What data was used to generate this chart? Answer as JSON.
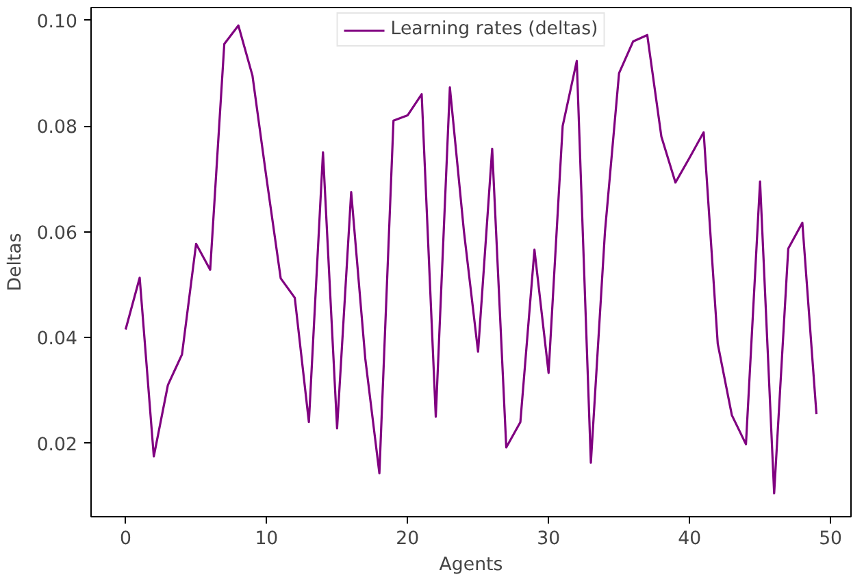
{
  "chart_data": {
    "type": "line",
    "xlabel": "Agents",
    "ylabel": "Deltas",
    "x": [
      0,
      1,
      2,
      3,
      4,
      5,
      6,
      7,
      8,
      9,
      10,
      11,
      12,
      13,
      14,
      15,
      16,
      17,
      18,
      19,
      20,
      21,
      22,
      23,
      24,
      25,
      26,
      27,
      28,
      29,
      30,
      31,
      32,
      33,
      34,
      35,
      36,
      37,
      38,
      39,
      40,
      41,
      42,
      43,
      44,
      45,
      46,
      47,
      48,
      49
    ],
    "series": [
      {
        "name": "Learning rates (deltas)",
        "color": "#800080",
        "values": [
          0.0415,
          0.0513,
          0.0175,
          0.031,
          0.0368,
          0.0577,
          0.0528,
          0.0955,
          0.099,
          0.0895,
          0.07,
          0.0512,
          0.0475,
          0.024,
          0.075,
          0.0228,
          0.0675,
          0.036,
          0.0143,
          0.081,
          0.082,
          0.086,
          0.025,
          0.0873,
          0.06,
          0.0373,
          0.0757,
          0.0192,
          0.024,
          0.0566,
          0.0333,
          0.08,
          0.0923,
          0.0163,
          0.06,
          0.09,
          0.096,
          0.0972,
          0.078,
          0.0693,
          0.074,
          0.0788,
          0.0388,
          0.0253,
          0.0198,
          0.0695,
          0.0105,
          0.0568,
          0.0617,
          0.0255
        ]
      }
    ],
    "xlim": [
      -2.45,
      51.45
    ],
    "ylim": [
      0.0061,
      0.1024
    ],
    "xticks": [
      0,
      10,
      20,
      30,
      40,
      50
    ],
    "yticks": [
      {
        "value": 0.02,
        "label": "0.02"
      },
      {
        "value": 0.04,
        "label": "0.04"
      },
      {
        "value": 0.06,
        "label": "0.06"
      },
      {
        "value": 0.08,
        "label": "0.08"
      },
      {
        "value": 0.1,
        "label": "0.10"
      }
    ],
    "legend": "top",
    "grid": false,
    "marker": "none",
    "line_style": "solid"
  }
}
